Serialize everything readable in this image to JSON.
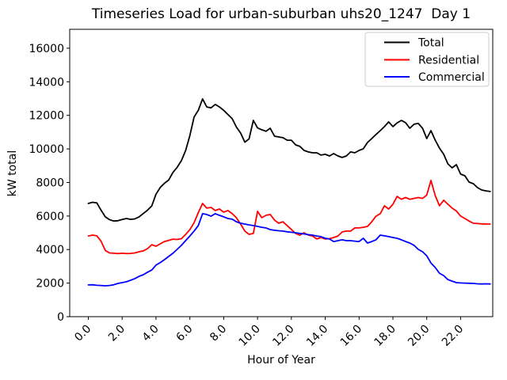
{
  "figure": {
    "background": "#ffffff",
    "spine_color": "#000000"
  },
  "legend": {
    "position": "upper right",
    "frame_edge_color": "#cccccc"
  },
  "chart_data": {
    "type": "line",
    "title": "Timeseries Load for urban-suburban uhs20_1247  Day 1",
    "xlabel": "Hour of Year",
    "ylabel": "kW total",
    "grid": false,
    "legend_position": "upper right",
    "xlim": [
      -1.1,
      23.9
    ],
    "ylim": [
      0,
      17130
    ],
    "xticks": [
      "0.0",
      "2.0",
      "4.0",
      "6.0",
      "8.0",
      "10.0",
      "12.0",
      "14.0",
      "16.0",
      "18.0",
      "20.0",
      "22.0"
    ],
    "yticks": [
      0,
      2000,
      4000,
      6000,
      8000,
      10000,
      12000,
      14000,
      16000
    ],
    "x": [
      0,
      0.25,
      0.5,
      0.75,
      1,
      1.25,
      1.5,
      1.75,
      2,
      2.25,
      2.5,
      2.75,
      3,
      3.25,
      3.5,
      3.75,
      4,
      4.25,
      4.5,
      4.75,
      5,
      5.25,
      5.5,
      5.75,
      6,
      6.25,
      6.5,
      6.75,
      7,
      7.25,
      7.5,
      7.75,
      8,
      8.25,
      8.5,
      8.75,
      9,
      9.25,
      9.5,
      9.75,
      10,
      10.25,
      10.5,
      10.75,
      11,
      11.25,
      11.5,
      11.75,
      12,
      12.25,
      12.5,
      12.75,
      13,
      13.25,
      13.5,
      13.75,
      14,
      14.25,
      14.5,
      14.75,
      15,
      15.25,
      15.5,
      15.75,
      16,
      16.25,
      16.5,
      16.75,
      17,
      17.25,
      17.5,
      17.75,
      18,
      18.25,
      18.5,
      18.75,
      19,
      19.25,
      19.5,
      19.75,
      20,
      20.25,
      20.5,
      20.75,
      21,
      21.25,
      21.5,
      21.75,
      22,
      22.25,
      22.5,
      22.75,
      23,
      23.25,
      23.5,
      23.75
    ],
    "series": [
      {
        "name": "Total",
        "color": "#000000",
        "values": [
          6750,
          6820,
          6780,
          6350,
          5950,
          5780,
          5700,
          5720,
          5790,
          5850,
          5800,
          5830,
          5950,
          6150,
          6350,
          6600,
          7300,
          7700,
          7950,
          8150,
          8600,
          8900,
          9300,
          9900,
          10800,
          11900,
          12300,
          12980,
          12500,
          12450,
          12650,
          12500,
          12300,
          12050,
          11800,
          11300,
          10950,
          10400,
          10600,
          11700,
          11250,
          11140,
          11050,
          11230,
          10760,
          10710,
          10670,
          10520,
          10520,
          10240,
          10150,
          9910,
          9820,
          9770,
          9770,
          9630,
          9680,
          9580,
          9720,
          9580,
          9490,
          9580,
          9820,
          9770,
          9910,
          10010,
          10380,
          10620,
          10860,
          11090,
          11330,
          11610,
          11330,
          11550,
          11700,
          11560,
          11230,
          11470,
          11520,
          11230,
          10620,
          11090,
          10520,
          10050,
          9680,
          9110,
          8870,
          9060,
          8500,
          8400,
          8020,
          7930,
          7690,
          7550,
          7500,
          7460
        ]
      },
      {
        "name": "Residential",
        "color": "#ff0000",
        "values": [
          4810,
          4860,
          4820,
          4500,
          3950,
          3800,
          3780,
          3760,
          3780,
          3760,
          3770,
          3800,
          3870,
          3920,
          4060,
          4290,
          4200,
          4340,
          4480,
          4550,
          4620,
          4600,
          4650,
          4900,
          5190,
          5600,
          6200,
          6750,
          6470,
          6510,
          6330,
          6420,
          6230,
          6330,
          6140,
          5900,
          5520,
          5100,
          4910,
          4960,
          6280,
          5900,
          6040,
          6090,
          5760,
          5570,
          5660,
          5430,
          5200,
          4960,
          4860,
          5000,
          4860,
          4810,
          4630,
          4720,
          4630,
          4650,
          4720,
          4810,
          5050,
          5100,
          5100,
          5290,
          5290,
          5330,
          5380,
          5660,
          5990,
          6140,
          6610,
          6420,
          6700,
          7170,
          7000,
          7100,
          7000,
          7050,
          7100,
          7050,
          7250,
          8120,
          7220,
          6610,
          6940,
          6700,
          6470,
          6300,
          6000,
          5850,
          5700,
          5570,
          5550,
          5530,
          5520,
          5520
        ]
      },
      {
        "name": "Commercial",
        "color": "#0000ff",
        "values": [
          1890,
          1900,
          1870,
          1860,
          1840,
          1860,
          1900,
          1980,
          2030,
          2080,
          2170,
          2270,
          2400,
          2500,
          2650,
          2780,
          3070,
          3230,
          3400,
          3590,
          3780,
          4010,
          4250,
          4530,
          4810,
          5100,
          5430,
          6140,
          6090,
          5990,
          6140,
          6040,
          5950,
          5850,
          5810,
          5660,
          5570,
          5520,
          5470,
          5430,
          5380,
          5330,
          5290,
          5190,
          5150,
          5120,
          5100,
          5060,
          5030,
          5000,
          4960,
          4930,
          4890,
          4860,
          4810,
          4770,
          4670,
          4630,
          4480,
          4530,
          4580,
          4530,
          4530,
          4500,
          4480,
          4670,
          4390,
          4480,
          4580,
          4860,
          4820,
          4770,
          4720,
          4670,
          4580,
          4480,
          4390,
          4250,
          4010,
          3870,
          3630,
          3200,
          2930,
          2590,
          2450,
          2210,
          2120,
          2030,
          2010,
          2000,
          1990,
          1980,
          1960,
          1950,
          1960,
          1950
        ]
      }
    ]
  }
}
